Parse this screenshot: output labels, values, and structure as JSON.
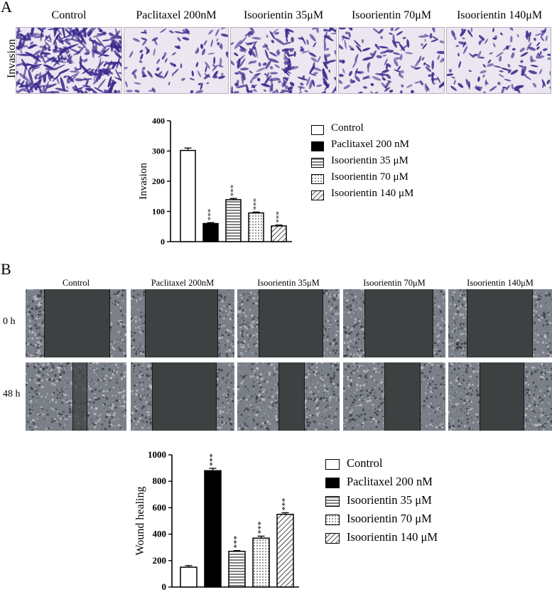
{
  "panel_a": {
    "letter": "A",
    "row_label": "Invasion",
    "image_labels": [
      "Control",
      "Paclitaxel 200nM",
      "Isoorientin 35μM",
      "Isoorientin 70μM",
      "Isoorientin 140μM"
    ],
    "cell_density": [
      1.0,
      0.22,
      0.55,
      0.35,
      0.3
    ]
  },
  "panel_b": {
    "letter": "B",
    "image_labels": [
      "Control",
      "Paclitaxel 200nM",
      "Isoorientin 35μM",
      "Isoorientin 70μM",
      "Isoorientin 140μM"
    ],
    "row_labels": [
      "0 h",
      "48 h"
    ]
  },
  "colors": {
    "stain": "#3a2a8c",
    "gap": "#3e4141",
    "cells": "#7b8088"
  },
  "chart_data": [
    {
      "type": "bar",
      "categories": [
        "Control",
        "Paclitaxel 200 nM",
        "Isoorientin 35 μM",
        "Isoorientin 70 μM",
        "Isoorientin 140 μM"
      ],
      "values": [
        302,
        60,
        139,
        95,
        52
      ],
      "errors": [
        8,
        3,
        4,
        3,
        3
      ],
      "patterns": [
        "open",
        "solid",
        "horizontal",
        "dotted",
        "diagonal"
      ],
      "significance": [
        "",
        "***",
        "***",
        "***",
        "***"
      ],
      "ylabel": "Invasion",
      "yticks": [
        "0",
        "100",
        "200",
        "300",
        "400"
      ],
      "ylim": [
        0,
        400
      ],
      "legend": "right"
    },
    {
      "type": "bar",
      "categories": [
        "Control",
        "Paclitaxel 200 nM",
        "Isoorientin 35 μM",
        "Isoorientin 70 μM",
        "Isoorientin 140 μM"
      ],
      "values": [
        150,
        880,
        270,
        370,
        550
      ],
      "errors": [
        12,
        18,
        6,
        15,
        12
      ],
      "patterns": [
        "open",
        "solid",
        "horizontal",
        "dotted",
        "diagonal"
      ],
      "significance": [
        "",
        "***",
        "***",
        "***",
        "***"
      ],
      "ylabel": "Wound healing",
      "yticks": [
        "0",
        "200",
        "400",
        "600",
        "800",
        "1000"
      ],
      "ylim": [
        0,
        1000
      ],
      "legend": "right"
    }
  ]
}
